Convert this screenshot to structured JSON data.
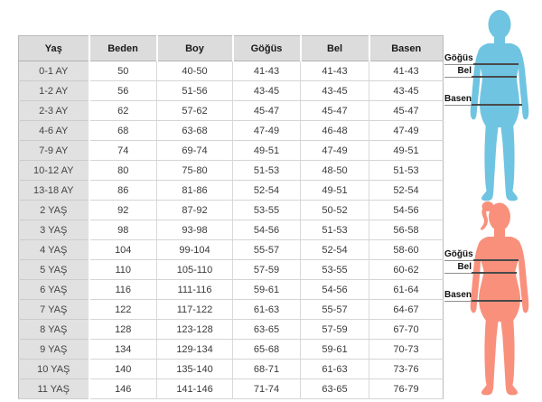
{
  "chart_data": {
    "type": "table",
    "columns": [
      "Yaş",
      "Beden",
      "Boy",
      "Göğüs",
      "Bel",
      "Basen"
    ],
    "rows": [
      [
        "0-1 AY",
        "50",
        "40-50",
        "41-43",
        "41-43",
        "41-43"
      ],
      [
        "1-2 AY",
        "56",
        "51-56",
        "43-45",
        "43-45",
        "43-45"
      ],
      [
        "2-3 AY",
        "62",
        "57-62",
        "45-47",
        "45-47",
        "45-47"
      ],
      [
        "4-6 AY",
        "68",
        "63-68",
        "47-49",
        "46-48",
        "47-49"
      ],
      [
        "7-9 AY",
        "74",
        "69-74",
        "49-51",
        "47-49",
        "49-51"
      ],
      [
        "10-12 AY",
        "80",
        "75-80",
        "51-53",
        "48-50",
        "51-53"
      ],
      [
        "13-18 AY",
        "86",
        "81-86",
        "52-54",
        "49-51",
        "52-54"
      ],
      [
        "2 YAŞ",
        "92",
        "87-92",
        "53-55",
        "50-52",
        "54-56"
      ],
      [
        "3 YAŞ",
        "98",
        "93-98",
        "54-56",
        "51-53",
        "56-58"
      ],
      [
        "4 YAŞ",
        "104",
        "99-104",
        "55-57",
        "52-54",
        "58-60"
      ],
      [
        "5 YAŞ",
        "110",
        "105-110",
        "57-59",
        "53-55",
        "60-62"
      ],
      [
        "6 YAŞ",
        "116",
        "111-116",
        "59-61",
        "54-56",
        "61-64"
      ],
      [
        "7 YAŞ",
        "122",
        "117-122",
        "61-63",
        "55-57",
        "64-67"
      ],
      [
        "8 YAŞ",
        "128",
        "123-128",
        "63-65",
        "57-59",
        "67-70"
      ],
      [
        "9 YAŞ",
        "134",
        "129-134",
        "65-68",
        "59-61",
        "70-73"
      ],
      [
        "10 YAŞ",
        "140",
        "135-140",
        "68-71",
        "61-63",
        "73-76"
      ],
      [
        "11 YAŞ",
        "146",
        "141-146",
        "71-74",
        "63-65",
        "76-79"
      ]
    ]
  },
  "figures": {
    "male": {
      "color": "#6fc4e1",
      "measures": [
        "Göğüs",
        "Bel",
        "Basen"
      ]
    },
    "female": {
      "color": "#f9907c",
      "measures": [
        "Göğüs",
        "Bel",
        "Basen"
      ]
    }
  },
  "colors": {
    "header_bg": "#dcdcdc",
    "row_label_bg": "#e1e1e1",
    "measure_line": "#4a4a4a",
    "male_silhouette": "#6fc4e1",
    "female_silhouette": "#f9907c"
  }
}
